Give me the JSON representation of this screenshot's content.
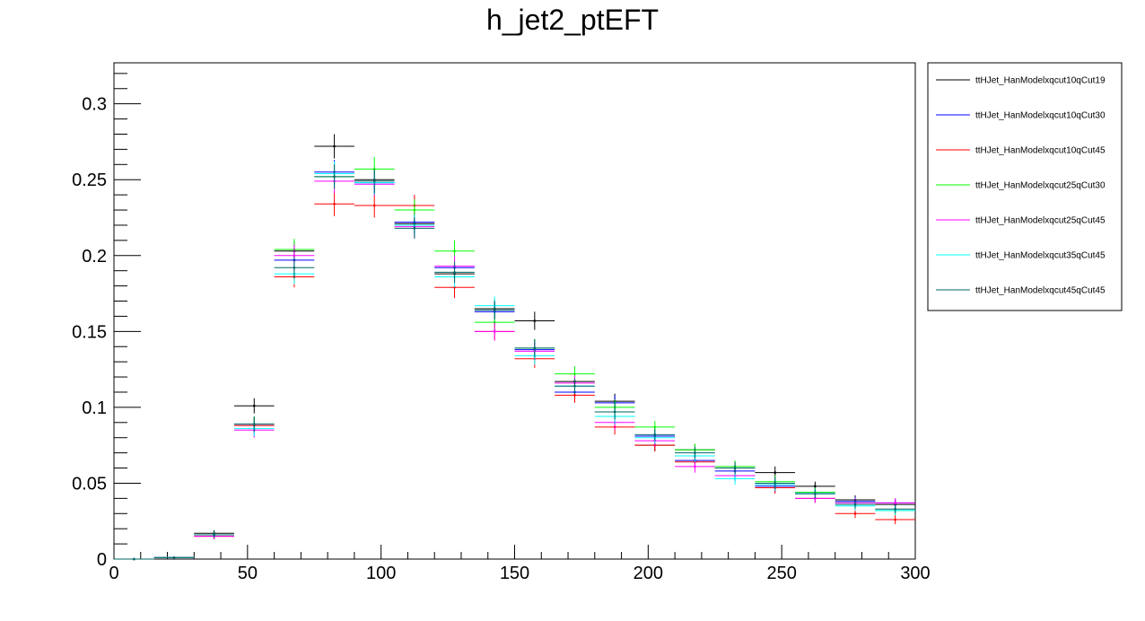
{
  "chart_data": {
    "type": "scatter",
    "title": "h_jet2_ptEFT",
    "xlabel": "",
    "ylabel": "",
    "xlim": [
      0,
      300
    ],
    "ylim": [
      0,
      0.327
    ],
    "x_ticks": [
      "0",
      "50",
      "100",
      "150",
      "200",
      "250",
      "300"
    ],
    "x_tick_values": [
      0,
      50,
      100,
      150,
      200,
      250,
      300
    ],
    "y_ticks": [
      "0",
      "0.05",
      "0.1",
      "0.15",
      "0.2",
      "0.25",
      "0.3"
    ],
    "y_tick_values": [
      0,
      0.05,
      0.1,
      0.15,
      0.2,
      0.25,
      0.3
    ],
    "bin_width": 15,
    "x": [
      7.5,
      22.5,
      37.5,
      52.5,
      67.5,
      82.5,
      97.5,
      112.5,
      127.5,
      142.5,
      157.5,
      172.5,
      187.5,
      202.5,
      217.5,
      232.5,
      247.5,
      262.5,
      277.5,
      292.5
    ],
    "grid": false,
    "legend_position": "right",
    "series": [
      {
        "name": "ttHJet_HanModelxqcut10qCut19",
        "color": "#000000",
        "values": [
          0,
          0.001,
          0.017,
          0.101,
          0.203,
          0.272,
          0.25,
          0.221,
          0.188,
          0.165,
          0.157,
          0.117,
          0.104,
          0.075,
          0.072,
          0.06,
          0.057,
          0.048,
          0.039,
          0.036
        ],
        "errors": [
          0.0005,
          0.001,
          0.002,
          0.005,
          0.007,
          0.008,
          0.008,
          0.007,
          0.007,
          0.006,
          0.006,
          0.005,
          0.005,
          0.004,
          0.004,
          0.004,
          0.004,
          0.003,
          0.003,
          0.003
        ]
      },
      {
        "name": "ttHJet_HanModelxqcut10qCut30",
        "color": "#0000ff",
        "values": [
          0,
          0.001,
          0.016,
          0.088,
          0.197,
          0.255,
          0.248,
          0.222,
          0.192,
          0.163,
          0.138,
          0.11,
          0.103,
          0.081,
          0.065,
          0.058,
          0.048,
          0.044,
          0.038,
          0.037
        ],
        "errors": [
          0.0005,
          0.001,
          0.002,
          0.005,
          0.007,
          0.008,
          0.008,
          0.007,
          0.007,
          0.006,
          0.006,
          0.005,
          0.005,
          0.004,
          0.004,
          0.004,
          0.004,
          0.003,
          0.003,
          0.003
        ]
      },
      {
        "name": "ttHJet_HanModelxqcut10qCut45",
        "color": "#ff0000",
        "values": [
          0,
          0.001,
          0.015,
          0.088,
          0.186,
          0.234,
          0.233,
          0.233,
          0.179,
          0.15,
          0.132,
          0.108,
          0.087,
          0.075,
          0.064,
          0.055,
          0.047,
          0.04,
          0.03,
          0.026
        ],
        "errors": [
          0.0005,
          0.001,
          0.002,
          0.005,
          0.007,
          0.008,
          0.008,
          0.007,
          0.007,
          0.006,
          0.006,
          0.005,
          0.005,
          0.004,
          0.004,
          0.004,
          0.004,
          0.003,
          0.003,
          0.003
        ]
      },
      {
        "name": "ttHJet_HanModelxqcut25qCut30",
        "color": "#00ff00",
        "values": [
          0,
          0.001,
          0.016,
          0.089,
          0.204,
          0.252,
          0.257,
          0.23,
          0.203,
          0.156,
          0.139,
          0.122,
          0.1,
          0.087,
          0.072,
          0.061,
          0.051,
          0.044,
          0.037,
          0.032
        ],
        "errors": [
          0.0005,
          0.001,
          0.002,
          0.005,
          0.007,
          0.008,
          0.008,
          0.007,
          0.007,
          0.006,
          0.006,
          0.005,
          0.005,
          0.004,
          0.004,
          0.004,
          0.004,
          0.003,
          0.003,
          0.003
        ]
      },
      {
        "name": "ttHJet_HanModelxqcut25qCut45",
        "color": "#ff00ff",
        "values": [
          0,
          0.001,
          0.015,
          0.085,
          0.2,
          0.249,
          0.247,
          0.219,
          0.193,
          0.15,
          0.137,
          0.116,
          0.09,
          0.078,
          0.061,
          0.055,
          0.049,
          0.04,
          0.037,
          0.037
        ],
        "errors": [
          0.0005,
          0.001,
          0.002,
          0.005,
          0.007,
          0.008,
          0.008,
          0.007,
          0.007,
          0.006,
          0.006,
          0.005,
          0.005,
          0.004,
          0.004,
          0.004,
          0.004,
          0.003,
          0.003,
          0.003
        ]
      },
      {
        "name": "ttHJet_HanModelxqcut35qCut45",
        "color": "#00ffff",
        "values": [
          0,
          0.001,
          0.016,
          0.086,
          0.188,
          0.254,
          0.248,
          0.22,
          0.186,
          0.167,
          0.134,
          0.114,
          0.094,
          0.08,
          0.068,
          0.053,
          0.049,
          0.043,
          0.035,
          0.032
        ],
        "errors": [
          0.0005,
          0.001,
          0.002,
          0.005,
          0.007,
          0.008,
          0.008,
          0.007,
          0.007,
          0.006,
          0.006,
          0.005,
          0.005,
          0.004,
          0.004,
          0.004,
          0.004,
          0.003,
          0.003,
          0.003
        ]
      },
      {
        "name": "ttHJet_HanModelxqcut45qCut45",
        "color": "#006666",
        "values": [
          0,
          0.001,
          0.016,
          0.089,
          0.192,
          0.252,
          0.249,
          0.218,
          0.189,
          0.164,
          0.139,
          0.114,
          0.097,
          0.082,
          0.07,
          0.06,
          0.05,
          0.043,
          0.036,
          0.033
        ],
        "errors": [
          0.0005,
          0.001,
          0.002,
          0.005,
          0.007,
          0.008,
          0.008,
          0.007,
          0.007,
          0.006,
          0.006,
          0.005,
          0.005,
          0.004,
          0.004,
          0.004,
          0.004,
          0.003,
          0.003,
          0.003
        ]
      }
    ]
  }
}
